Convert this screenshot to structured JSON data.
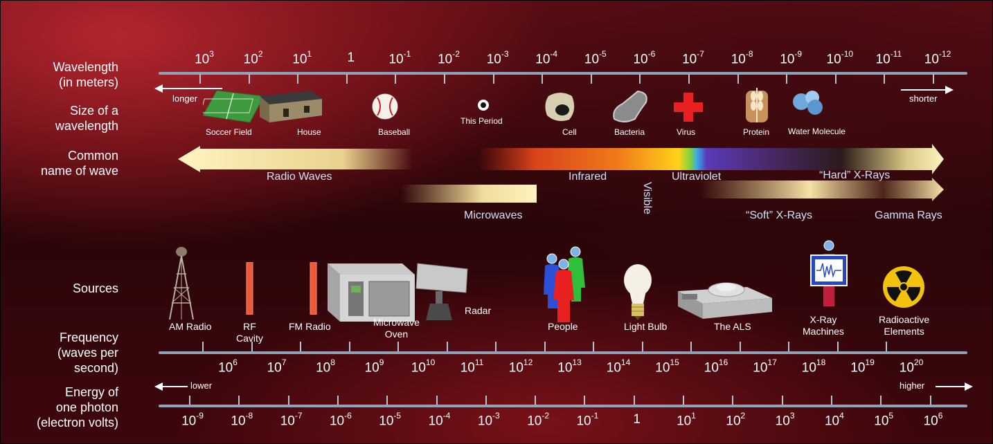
{
  "row_labels": {
    "wavelength": [
      "Wavelength",
      "(in meters)"
    ],
    "size": [
      "Size of a",
      "wavelength"
    ],
    "common": [
      "Common",
      "name of wave"
    ],
    "sources": "Sources",
    "frequency": [
      "Frequency",
      "(waves per",
      "second)"
    ],
    "energy": [
      "Energy of",
      "one photon",
      "(electron volts)"
    ]
  },
  "wavelength_ticks": [
    {
      "base": "10",
      "exp": "3"
    },
    {
      "base": "10",
      "exp": "2"
    },
    {
      "base": "10",
      "exp": "1"
    },
    {
      "base": "1",
      "exp": ""
    },
    {
      "base": "10",
      "exp": "-1"
    },
    {
      "base": "10",
      "exp": "-2"
    },
    {
      "base": "10",
      "exp": "-3"
    },
    {
      "base": "10",
      "exp": "-4"
    },
    {
      "base": "10",
      "exp": "-5"
    },
    {
      "base": "10",
      "exp": "-6"
    },
    {
      "base": "10",
      "exp": "-7"
    },
    {
      "base": "10",
      "exp": "-8"
    },
    {
      "base": "10",
      "exp": "-9"
    },
    {
      "base": "10",
      "exp": "-10"
    },
    {
      "base": "10",
      "exp": "-11"
    },
    {
      "base": "10",
      "exp": "-12"
    }
  ],
  "wavelength_arrows": {
    "left": "longer",
    "right": "shorter"
  },
  "size_items": [
    "Soccer Field",
    "House",
    "Baseball",
    "This Period",
    "Cell",
    "Bacteria",
    "Virus",
    "Protein",
    "Water Molecule"
  ],
  "wave_names": {
    "radio": "Radio Waves",
    "microwaves": "Microwaves",
    "infrared": "Infrared",
    "visible": "Visible",
    "ultraviolet": "Ultraviolet",
    "hard_xrays": "“Hard” X-Rays",
    "soft_xrays": "“Soft” X-Rays",
    "gamma": "Gamma Rays"
  },
  "sources": {
    "am": "AM Radio",
    "rf1": "RF",
    "rf2": "Cavity",
    "fm": "FM Radio",
    "mw1": "Microwave",
    "mw2": "Oven",
    "radar": "Radar",
    "people": "People",
    "bulb": "Light Bulb",
    "als": "The ALS",
    "xray1": "X-Ray",
    "xray2": "Machines",
    "radio1": "Radioactive",
    "radio2": "Elements"
  },
  "frequency_ticks": [
    {
      "base": "10",
      "exp": "6"
    },
    {
      "base": "10",
      "exp": "7"
    },
    {
      "base": "10",
      "exp": "8"
    },
    {
      "base": "10",
      "exp": "9"
    },
    {
      "base": "10",
      "exp": "10"
    },
    {
      "base": "10",
      "exp": "11"
    },
    {
      "base": "10",
      "exp": "12"
    },
    {
      "base": "10",
      "exp": "13"
    },
    {
      "base": "10",
      "exp": "14"
    },
    {
      "base": "10",
      "exp": "15"
    },
    {
      "base": "10",
      "exp": "16"
    },
    {
      "base": "10",
      "exp": "17"
    },
    {
      "base": "10",
      "exp": "18"
    },
    {
      "base": "10",
      "exp": "19"
    },
    {
      "base": "10",
      "exp": "20"
    }
  ],
  "energy_arrows": {
    "left": "lower",
    "right": "higher"
  },
  "energy_ticks": [
    {
      "base": "10",
      "exp": "-9"
    },
    {
      "base": "10",
      "exp": "-8"
    },
    {
      "base": "10",
      "exp": "-7"
    },
    {
      "base": "10",
      "exp": "-6"
    },
    {
      "base": "10",
      "exp": "-5"
    },
    {
      "base": "10",
      "exp": "-4"
    },
    {
      "base": "10",
      "exp": "-3"
    },
    {
      "base": "10",
      "exp": "-2"
    },
    {
      "base": "10",
      "exp": "-1"
    },
    {
      "base": "1",
      "exp": ""
    },
    {
      "base": "10",
      "exp": "1"
    },
    {
      "base": "10",
      "exp": "2"
    },
    {
      "base": "10",
      "exp": "3"
    },
    {
      "base": "10",
      "exp": "4"
    },
    {
      "base": "10",
      "exp": "5"
    },
    {
      "base": "10",
      "exp": "6"
    }
  ]
}
